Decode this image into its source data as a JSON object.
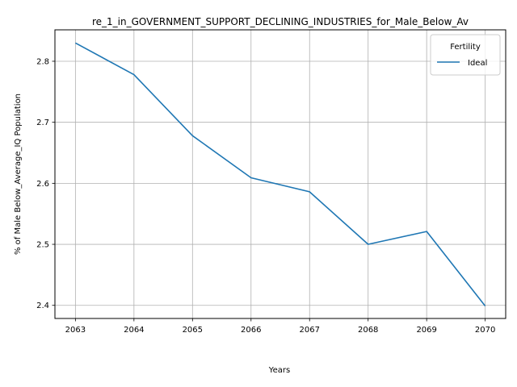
{
  "chart_data": {
    "type": "line",
    "title": "re_1_in_GOVERNMENT_SUPPORT_DECLINING_INDUSTRIES_for_Male_Below_Av",
    "xlabel": "Years",
    "ylabel": "% of Male Below_Average_IQ Population",
    "x": [
      2063,
      2064,
      2065,
      2066,
      2067,
      2068,
      2069,
      2070
    ],
    "x_tick_labels": [
      "2063",
      "2064",
      "2065",
      "2066",
      "2067",
      "2068",
      "2069",
      "2070"
    ],
    "y_ticks": [
      2.4,
      2.5,
      2.6,
      2.7,
      2.8
    ],
    "y_tick_labels": [
      "2.4",
      "2.5",
      "2.6",
      "2.7",
      "2.8"
    ],
    "xlim": [
      2062.65,
      2070.35
    ],
    "ylim": [
      2.3785,
      2.8515
    ],
    "grid": true,
    "legend": {
      "title": "Fertility",
      "placement": "top-right"
    },
    "series": [
      {
        "name": "Ideal",
        "color": "#1f77b4",
        "values": [
          2.83,
          2.778,
          2.678,
          2.609,
          2.586,
          2.5,
          2.521,
          2.399
        ]
      }
    ]
  }
}
